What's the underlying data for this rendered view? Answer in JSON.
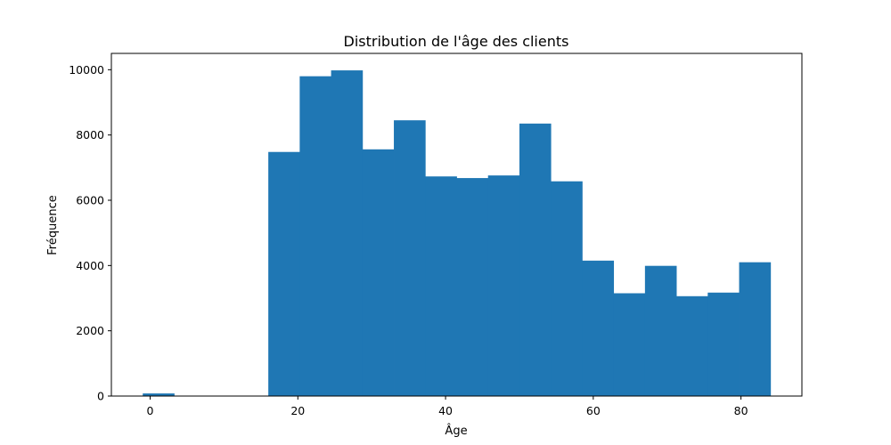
{
  "chart_data": {
    "type": "bar",
    "title": "Distribution de l'âge des clients",
    "xlabel": "Âge",
    "ylabel": "Fréquence",
    "bin_edges": [
      -1,
      3.25,
      7.5,
      11.75,
      16,
      20.25,
      24.5,
      28.75,
      33,
      37.25,
      41.5,
      45.75,
      50,
      54.25,
      58.5,
      62.75,
      67,
      71.25,
      75.5,
      79.75,
      84
    ],
    "values": [
      80,
      0,
      0,
      0,
      7480,
      9800,
      9980,
      7560,
      8450,
      6730,
      6680,
      6760,
      8350,
      6580,
      4150,
      3150,
      3990,
      3060,
      3170,
      4100
    ],
    "xlim": [
      -5.25,
      88.25
    ],
    "ylim": [
      0,
      10500
    ],
    "xticks": [
      0,
      20,
      40,
      60,
      80
    ],
    "yticks": [
      0,
      2000,
      4000,
      6000,
      8000,
      10000
    ],
    "bar_color": "#1f77b4",
    "grid": false,
    "legend": false
  }
}
